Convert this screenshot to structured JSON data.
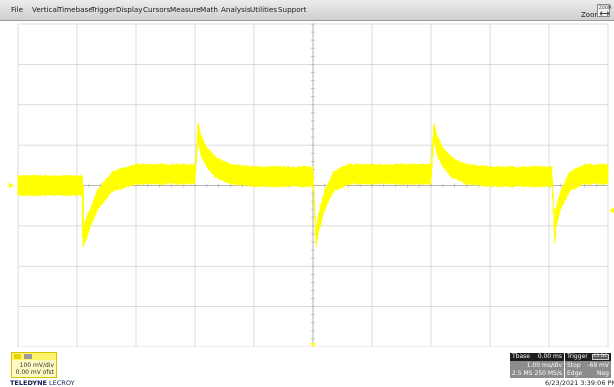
{
  "menu": {
    "items": [
      "File",
      "Vertical",
      "Timebase",
      "Trigger",
      "Display",
      "Cursors",
      "Measure",
      "Math",
      "Analysis",
      "Utilities",
      "Support"
    ],
    "zoom_label": "Zoom",
    "zoom_icon_text": "ZOOM"
  },
  "colors": {
    "trace": "#ffff00",
    "grid": "#d2d2d2",
    "center_axis": "#a8a8a8"
  },
  "channel": {
    "vdiv": "100 mV/div",
    "offset": "0.00 mV ofst"
  },
  "brand": {
    "bold": "TELEDYNE",
    "rest": " LECROY"
  },
  "timebase": {
    "title": "Tbase",
    "delay": "0.00 ms",
    "tdiv": "1.00 ms/div",
    "samples": "2.5 MS",
    "rate": "250 MS/s"
  },
  "trigger": {
    "title": "Trigger",
    "tag": "C1 DC",
    "mode": "Stop",
    "level": "-69 mV",
    "type": "Edge",
    "slope": "Neg"
  },
  "datetime": "6/23/2021 3:39:06 PM",
  "chart_data": {
    "type": "line",
    "title": "",
    "xlabel": "",
    "ylabel": "",
    "grid_divisions": {
      "x": 10,
      "y": 8
    },
    "series": [
      {
        "x_div": [
          0,
          1.05,
          1.1,
          1.1,
          1.2,
          1.35,
          1.6,
          2.0,
          2.5,
          3.0,
          3.05,
          3.1,
          3.2,
          3.35,
          3.6,
          4.0,
          4.5,
          5.0,
          5.05,
          5.1,
          5.2,
          5.35,
          5.6,
          6.0,
          6.5,
          7.0,
          7.05,
          7.1,
          7.2,
          7.35,
          7.6,
          8.0,
          8.5,
          9.05,
          9.1,
          9.1,
          9.2,
          9.35,
          9.6,
          10.0
        ],
        "y_div": [
          0.0,
          0.0,
          0.0,
          -1.3,
          -0.9,
          -0.35,
          0.1,
          0.28,
          0.28,
          0.28,
          1.35,
          1.0,
          0.7,
          0.45,
          0.28,
          0.22,
          0.22,
          0.22,
          -1.3,
          -0.9,
          -0.35,
          0.1,
          0.28,
          0.28,
          0.28,
          0.28,
          1.35,
          1.0,
          0.7,
          0.45,
          0.28,
          0.22,
          0.22,
          0.22,
          -1.3,
          -0.9,
          -0.35,
          0.1,
          0.28,
          0.28
        ]
      }
    ]
  }
}
